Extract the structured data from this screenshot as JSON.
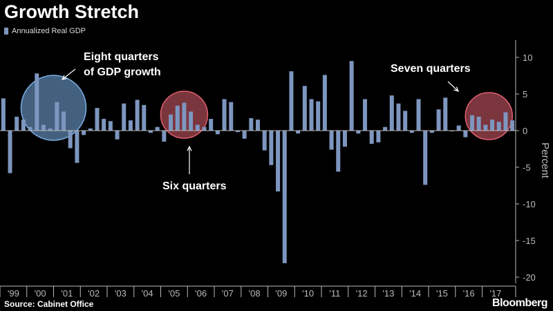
{
  "chart_data": {
    "type": "bar",
    "title": "Growth Stretch",
    "legend": {
      "label": "Annualized Real GDP",
      "position": "top-left"
    },
    "ylabel": "Percent",
    "ylim": [
      -20,
      12
    ],
    "yticks": [
      10,
      5,
      0,
      -5,
      -10,
      -15,
      -20
    ],
    "series_color": "#7d96bf",
    "year_labels": [
      "'99",
      "'00",
      "'01",
      "'02",
      "'03",
      "'04",
      "'05",
      "'06",
      "'07",
      "'08",
      "'09",
      "'10",
      "'11",
      "'12",
      "'13",
      "'14",
      "'15",
      "'16",
      "'17"
    ],
    "quarters_per_year": 4,
    "start": "1999-Q1",
    "series": [
      {
        "values": [
          4.4,
          -5.8,
          1.9,
          1.5,
          0.5,
          7.8,
          0.8,
          0.3,
          3.9,
          2.6,
          -2.4,
          -4.4,
          -0.6,
          0.3,
          3.1,
          1.6,
          1.3,
          -1.2,
          3.7,
          1.4,
          4.2,
          3.5,
          -0.3,
          0.5,
          -1.5,
          2.2,
          3.4,
          3.8,
          2.6,
          0.8,
          0.5,
          1.6,
          -0.5,
          4.3,
          3.9,
          -0.2,
          -1.1,
          1.7,
          1.5,
          -2.7,
          -4.7,
          -8.3,
          -18.1,
          8.1,
          -0.4,
          6.1,
          4.3,
          4.0,
          7.6,
          -2.6,
          -5.6,
          -2.2,
          9.5,
          -0.4,
          4.3,
          -1.8,
          -1.6,
          0.5,
          4.8,
          3.7,
          2.7,
          -0.3,
          4.3,
          -7.4,
          -0.3,
          2.9,
          4.5,
          -0.1,
          0.7,
          -0.9,
          2.1,
          1.9,
          0.8,
          1.5,
          1.2,
          2.5,
          1.4
        ]
      }
    ],
    "annotations": [
      {
        "id": "eight",
        "lines": [
          "Eight quarters",
          "of GDP growth"
        ],
        "circle_color": "#7ab0e8"
      },
      {
        "id": "six",
        "lines": [
          "Six quarters"
        ],
        "circle_color": "#e06070"
      },
      {
        "id": "seven",
        "lines": [
          "Seven quarters"
        ],
        "circle_color": "#e06070"
      }
    ]
  },
  "footer": {
    "source": "Source: Cabinet Office",
    "brand": "Bloomberg"
  },
  "colors": {
    "background": "#000000",
    "bar": "#7d96bf",
    "axis": "#bbbbbb"
  }
}
